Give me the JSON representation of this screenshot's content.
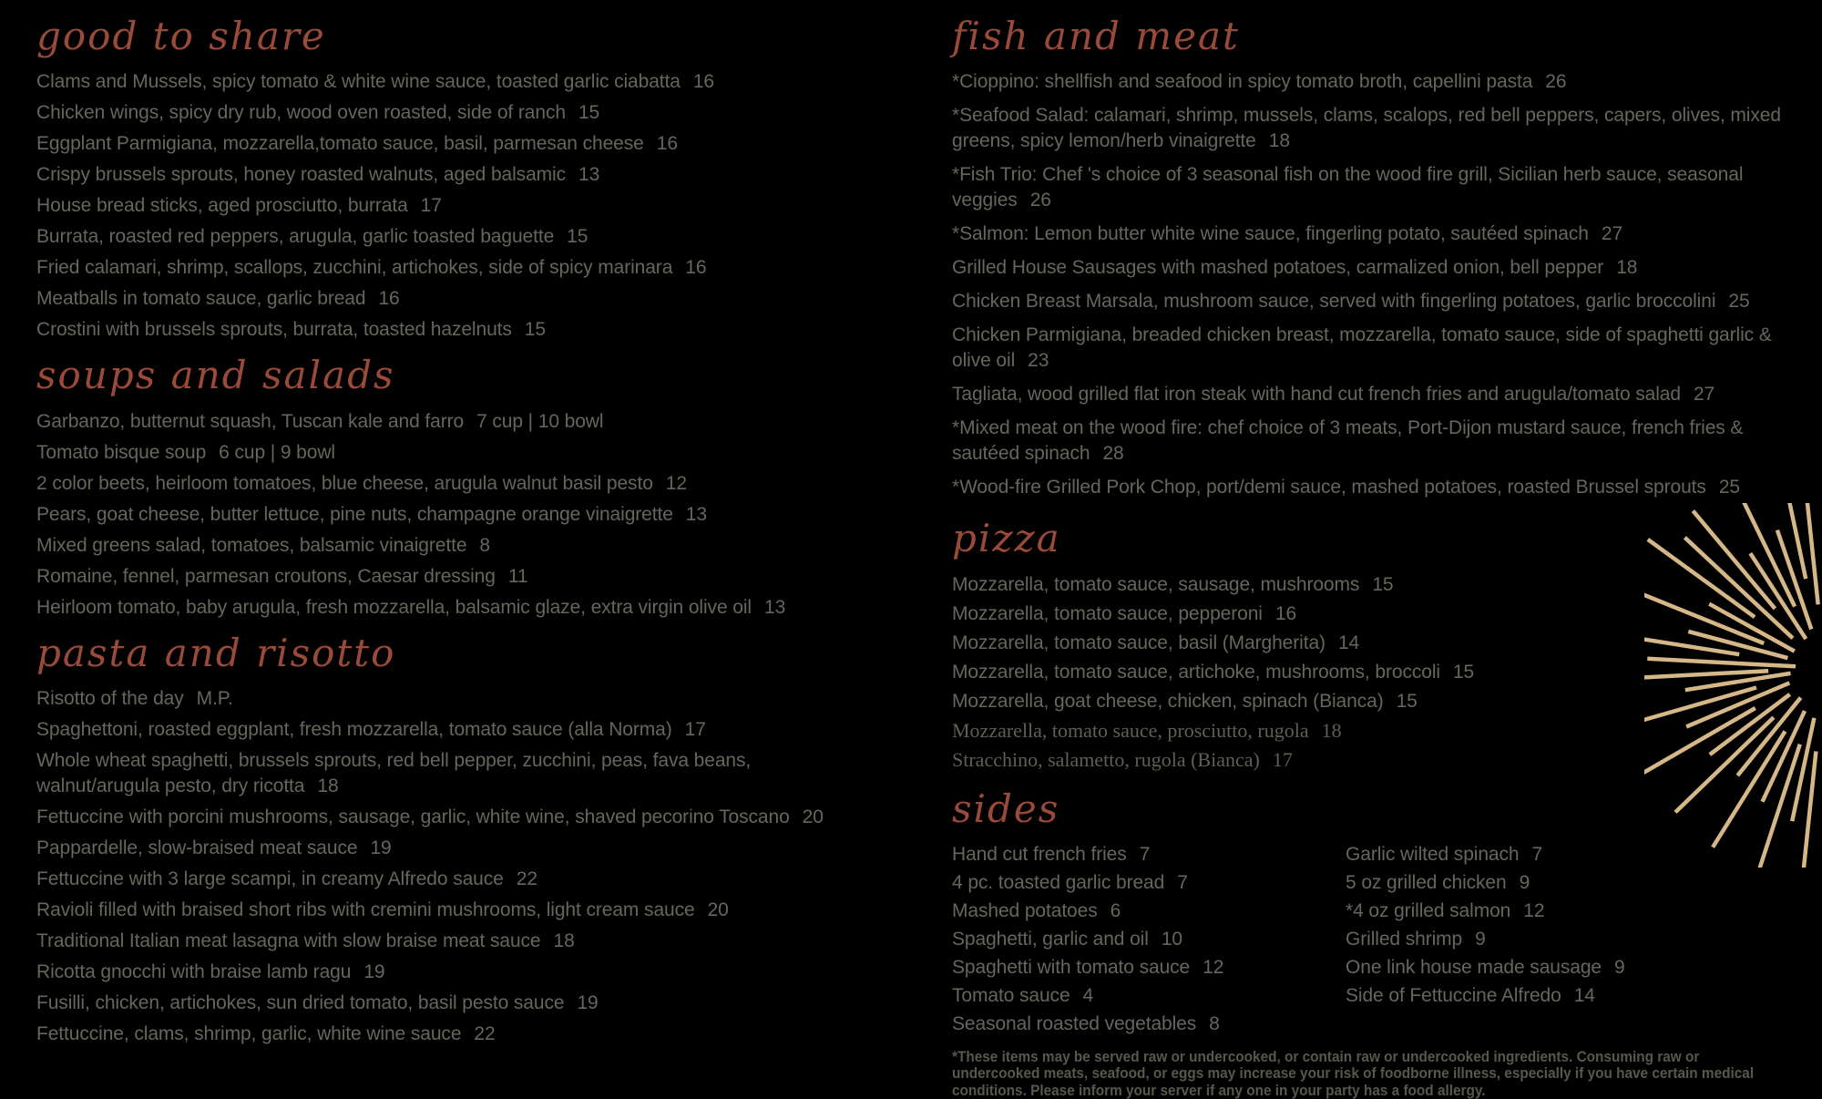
{
  "colors": {
    "background": "#000000",
    "heading_script": "#9a4a38",
    "body_text": "#65675d",
    "serif_item_text": "#5d6053",
    "disclaimer_text": "#565849",
    "sunburst": "#d6b788"
  },
  "columns": [
    {
      "name": "left",
      "sections": [
        {
          "title": "good to share",
          "items": [
            {
              "text": "Clams and Mussels, spicy tomato & white wine sauce, toasted garlic ciabatta",
              "price": "16"
            },
            {
              "text": "Chicken wings, spicy dry rub, wood oven roasted, side of ranch",
              "price": "15"
            },
            {
              "text": "Eggplant Parmigiana, mozzarella,tomato sauce, basil, parmesan cheese",
              "price": "16"
            },
            {
              "text": "Crispy brussels sprouts, honey roasted walnuts, aged balsamic",
              "price": "13"
            },
            {
              "text": "House bread sticks, aged prosciutto, burrata",
              "price": "17"
            },
            {
              "text": "Burrata, roasted red peppers, arugula, garlic toasted baguette",
              "price": "15"
            },
            {
              "text": "Fried calamari, shrimp, scallops, zucchini, artichokes, side of spicy marinara",
              "price": "16"
            },
            {
              "text": "Meatballs in tomato sauce, garlic bread",
              "price": "16"
            },
            {
              "text": "Crostini with brussels sprouts, burrata, toasted hazelnuts",
              "price": "15"
            }
          ]
        },
        {
          "title": "soups and salads",
          "items": [
            {
              "text": "Garbanzo, butternut squash, Tuscan kale and farro",
              "price": "7 cup | 10 bowl"
            },
            {
              "text": "Tomato bisque soup",
              "price": "6 cup | 9 bowl"
            },
            {
              "text": "2 color beets, heirloom tomatoes, blue cheese, arugula walnut basil pesto",
              "price": "12"
            },
            {
              "text": "Pears, goat cheese, butter lettuce, pine nuts, champagne orange vinaigrette",
              "price": "13"
            },
            {
              "text": "Mixed greens salad, tomatoes, balsamic vinaigrette",
              "price": "8"
            },
            {
              "text": "Romaine, fennel, parmesan croutons, Caesar dressing",
              "price": "11"
            },
            {
              "text": "Heirloom tomato, baby arugula, fresh mozzarella, balsamic glaze, extra virgin olive oil",
              "price": "13"
            }
          ]
        },
        {
          "title": "pasta and risotto",
          "items": [
            {
              "text": "Risotto of the day",
              "price": "M.P."
            },
            {
              "text": "Spaghettoni, roasted eggplant, fresh mozzarella, tomato sauce (alla Norma)",
              "price": "17"
            },
            {
              "text": "Whole wheat spaghetti, brussels sprouts, red bell pepper, zucchini, peas, fava beans, walnut/arugula pesto, dry ricotta",
              "price": "18"
            },
            {
              "text": "Fettuccine with porcini mushrooms, sausage, garlic, white wine, shaved pecorino Toscano",
              "price": "20"
            },
            {
              "text": "Pappardelle, slow-braised meat sauce",
              "price": "19"
            },
            {
              "text": "Fettuccine with 3 large scampi, in creamy Alfredo sauce",
              "price": "22"
            },
            {
              "text": "Ravioli filled with braised short ribs with cremini mushrooms, light cream sauce",
              "price": "20"
            },
            {
              "text": "Traditional Italian meat lasagna with slow braise meat sauce",
              "price": "18"
            },
            {
              "text": "Ricotta gnocchi with braise lamb ragu",
              "price": "19"
            },
            {
              "text": "Fusilli, chicken, artichokes, sun dried tomato, basil pesto sauce",
              "price": "19"
            },
            {
              "text": "Fettuccine, clams, shrimp, garlic, white wine sauce",
              "price": "22"
            }
          ]
        }
      ]
    },
    {
      "name": "right",
      "sections": [
        {
          "title": "fish and meat",
          "items": [
            {
              "text": "*Cioppino: shellfish and seafood in spicy tomato broth, capellini pasta",
              "price": "26"
            },
            {
              "text": "*Seafood Salad: calamari, shrimp, mussels, clams, scalops, red bell peppers, capers, olives, mixed greens, spicy lemon/herb vinaigrette",
              "price": "18"
            },
            {
              "text": "*Fish Trio: Chef 's choice of 3 seasonal fish on the wood fire grill, Sicilian herb sauce, seasonal veggies",
              "price": "26"
            },
            {
              "text": "*Salmon: Lemon butter white wine sauce, fingerling potato, sautéed spinach",
              "price": "27"
            },
            {
              "text": "Grilled House Sausages with mashed potatoes, carmalized onion, bell pepper",
              "price": "18"
            },
            {
              "text": "Chicken Breast Marsala, mushroom sauce, served with fingerling potatoes, garlic broccolini",
              "price": "25"
            },
            {
              "text": "Chicken Parmigiana, breaded chicken breast, mozzarella, tomato sauce, side of spaghetti garlic & olive oil",
              "price": "23"
            },
            {
              "text": "Tagliata, wood grilled flat iron steak with hand cut french fries and arugula/tomato salad",
              "price": "27"
            },
            {
              "text": "*Mixed meat on the wood fire: chef choice of 3 meats, Port-Dijon mustard sauce, french fries & sautéed spinach",
              "price": "28"
            },
            {
              "text": "*Wood-fire Grilled Pork Chop, port/demi sauce, mashed potatoes, roasted Brussel sprouts",
              "price": "25"
            }
          ]
        },
        {
          "title": "pizza",
          "items": [
            {
              "text": "Mozzarella, tomato sauce, sausage, mushrooms",
              "price": "15"
            },
            {
              "text": "Mozzarella, tomato sauce, pepperoni",
              "price": "16"
            },
            {
              "text": "Mozzarella, tomato sauce, basil (Margherita)",
              "price": "14"
            },
            {
              "text": "Mozzarella, tomato sauce, artichoke, mushrooms, broccoli",
              "price": "15"
            },
            {
              "text": "Mozzarella, goat cheese, chicken, spinach (Bianca)",
              "price": "15"
            },
            {
              "text": "Mozzarella, tomato sauce, prosciutto, rugola",
              "price": "18",
              "serif": true
            },
            {
              "text": "Stracchino, salametto, rugola (Bianca)",
              "price": "17",
              "serif": true
            }
          ]
        },
        {
          "title": "sides",
          "columns": [
            [
              {
                "text": "Hand cut french fries",
                "price": "7"
              },
              {
                "text": "4 pc. toasted garlic bread",
                "price": "7"
              },
              {
                "text": "Mashed potatoes",
                "price": "6"
              },
              {
                "text": "Spaghetti, garlic and oil",
                "price": "10"
              },
              {
                "text": "Spaghetti with tomato sauce",
                "price": "12"
              },
              {
                "text": "Tomato sauce",
                "price": "4"
              },
              {
                "text": "Seasonal roasted vegetables",
                "price": "8"
              }
            ],
            [
              {
                "text": "Garlic wilted spinach",
                "price": "7"
              },
              {
                "text": "5 oz grilled chicken",
                "price": "9"
              },
              {
                "text": "*4 oz grilled salmon",
                "price": "12"
              },
              {
                "text": "Grilled shrimp",
                "price": "9"
              },
              {
                "text": "One link house made sausage",
                "price": "9"
              },
              {
                "text": "Side of Fettuccine Alfredo",
                "price": "14"
              }
            ]
          ]
        }
      ],
      "disclaimer": "*These items may be served raw or undercooked, or contain raw or undercooked ingredients. Consuming raw or undercooked meats, seafood, or eggs may increase your risk of foodborne illness, especially if you have certain medical conditions. Please inform your server if any one in your party has a food allergy."
    }
  ]
}
